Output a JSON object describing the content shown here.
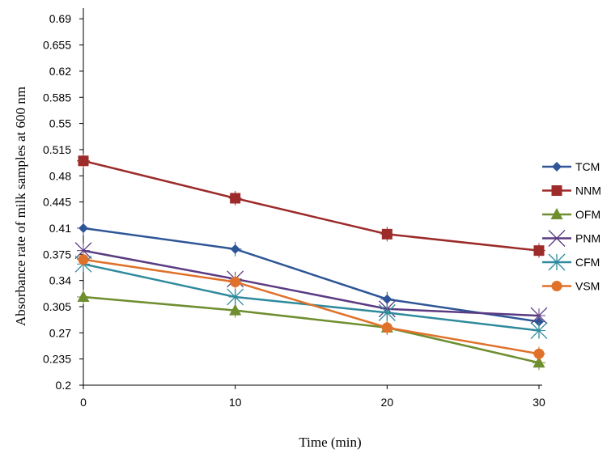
{
  "chart_data": {
    "type": "line",
    "xlabel": "Time (min)",
    "ylabel": "Absorbance rate of milk samples at 600 nm",
    "x": [
      0,
      10,
      20,
      30
    ],
    "xlim": [
      0,
      30
    ],
    "xticks": [
      "0",
      "10",
      "20",
      "30"
    ],
    "ylim": [
      0.2,
      0.7
    ],
    "yticks": [
      "0.2",
      "0.235",
      "0.27",
      "0.305",
      "0.34",
      "0.375",
      "0.41",
      "0.445",
      "0.48",
      "0.515",
      "0.55",
      "0.585",
      "0.62",
      "0.655",
      "0.69"
    ],
    "grid": false,
    "legend_position": "right",
    "series": [
      {
        "name": "TCM",
        "color": "#2E5597",
        "marker": "diamond",
        "values": [
          0.41,
          0.382,
          0.315,
          0.285
        ]
      },
      {
        "name": "NNM",
        "color": "#9C2B2A",
        "marker": "square",
        "values": [
          0.5,
          0.45,
          0.402,
          0.38
        ]
      },
      {
        "name": "OFM",
        "color": "#6E8E2F",
        "marker": "triangle",
        "values": [
          0.318,
          0.3,
          0.277,
          0.23
        ]
      },
      {
        "name": "PNM",
        "color": "#5A3B82",
        "marker": "x",
        "values": [
          0.38,
          0.342,
          0.302,
          0.293
        ]
      },
      {
        "name": "CFM",
        "color": "#2E8A9C",
        "marker": "star",
        "values": [
          0.362,
          0.318,
          0.297,
          0.273
        ]
      },
      {
        "name": "VSM",
        "color": "#E0712A",
        "marker": "circle",
        "values": [
          0.368,
          0.338,
          0.277,
          0.242
        ]
      }
    ]
  }
}
